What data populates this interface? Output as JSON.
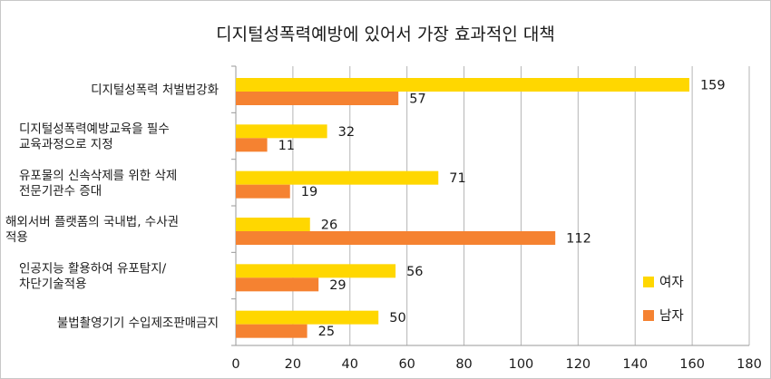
{
  "chart_data": {
    "type": "bar",
    "orientation": "horizontal",
    "title": "디지털성폭력예방에 있어서 가장 효과적인 대책",
    "categories": [
      [
        "디지털성폭력 처벌법강화"
      ],
      [
        "디지털성폭력예방교육을 필수",
        "교육과정으로 지정"
      ],
      [
        "유포물의 신속삭제를 위한 삭제",
        "전문기관수 증대"
      ],
      [
        "해외서버 플랫폼의 국내법, 수사권",
        "적용"
      ],
      [
        "인공지능 활용하여 유포탐지/",
        "차단기술적용"
      ],
      [
        "불법촬영기기 수입제조판매금지"
      ]
    ],
    "series": [
      {
        "name": "여자",
        "color": "#FFD700",
        "values": [
          159,
          32,
          71,
          26,
          56,
          50
        ]
      },
      {
        "name": "남자",
        "color": "#F58231",
        "values": [
          57,
          11,
          19,
          112,
          29,
          25
        ]
      }
    ],
    "xlim": [
      0,
      180
    ],
    "xticks": [
      0,
      20,
      40,
      60,
      80,
      100,
      120,
      140,
      160,
      180
    ],
    "grid": "vertical",
    "legend_position": "right"
  }
}
